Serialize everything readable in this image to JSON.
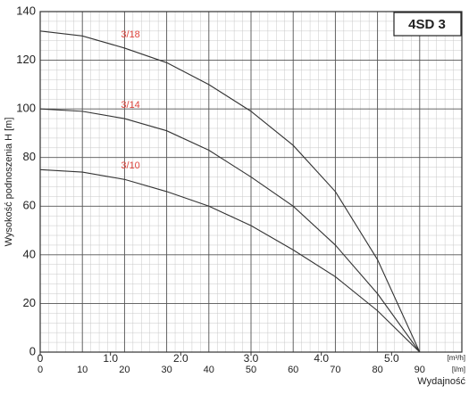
{
  "chart_data": {
    "type": "line",
    "title": "4SD 3",
    "ylabel": "Wysokość podnoszenia H [m]",
    "xlabel": "Wydajność",
    "x_unit": "[l/m]",
    "x2_unit": "[m³/h]",
    "x": [
      0,
      10,
      20,
      30,
      40,
      50,
      60,
      70,
      80,
      90
    ],
    "series": [
      {
        "name": "3/18",
        "color": "#333333",
        "values": [
          132,
          130,
          125,
          119,
          110,
          99,
          85,
          66,
          38,
          0
        ]
      },
      {
        "name": "3/14",
        "color": "#333333",
        "values": [
          100,
          99,
          96,
          91,
          83,
          72,
          60,
          44,
          24,
          0
        ]
      },
      {
        "name": "3/10",
        "color": "#333333",
        "values": [
          75,
          74,
          71,
          66,
          60,
          52,
          42,
          31,
          17,
          0
        ]
      }
    ],
    "label_color": "#e0443c",
    "xlim": [
      0,
      100
    ],
    "xticks": [
      0,
      10,
      20,
      30,
      40,
      50,
      60,
      70,
      80,
      90
    ],
    "x2lim": [
      0,
      6
    ],
    "x2ticks": [
      0,
      {
        "value": 1,
        "label": "1.0"
      },
      {
        "value": 2,
        "label": "2.0"
      },
      {
        "value": 3,
        "label": "3.0"
      },
      {
        "value": 4,
        "label": "4.0"
      },
      {
        "value": 5,
        "label": "5.0"
      }
    ],
    "ylim": [
      0,
      140
    ],
    "yticks": [
      0,
      20,
      40,
      60,
      80,
      100,
      120,
      140
    ],
    "grid": true
  }
}
